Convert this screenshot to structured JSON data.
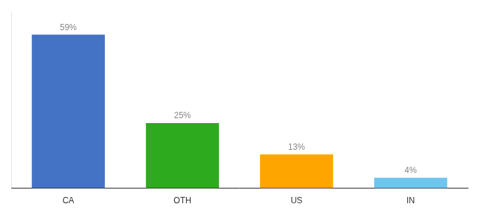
{
  "chart_data": {
    "type": "bar",
    "categories": [
      "CA",
      "OTH",
      "US",
      "IN"
    ],
    "values": [
      59,
      25,
      13,
      4
    ],
    "value_labels": [
      "59%",
      "25%",
      "13%",
      "4%"
    ],
    "data_labels": true,
    "colors": [
      "#4472C4",
      "#2EAA1E",
      "#FFA500",
      "#6EC6F0"
    ],
    "ylim": [
      0,
      68
    ],
    "grid": false,
    "tick_labels": "x"
  }
}
